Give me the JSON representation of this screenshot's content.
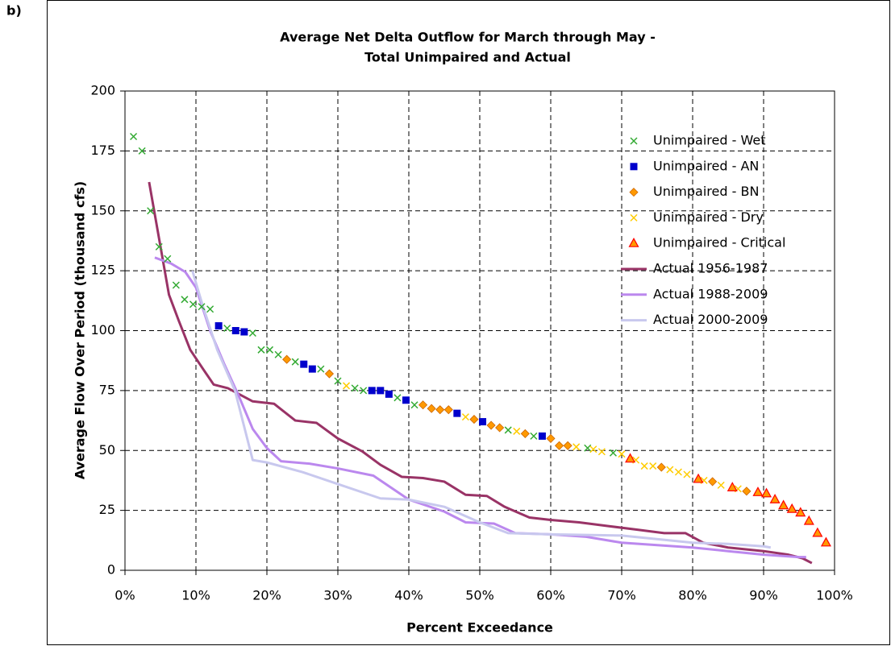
{
  "chart_data": {
    "type": "scatter",
    "panel_label": "b)",
    "title": [
      "Average Net Delta Outflow for March through May -",
      "Total Unimpaired and Actual"
    ],
    "xlabel": "Percent Exceedance",
    "ylabel": "Average Flow Over Period (thousand cfs)",
    "xlim": [
      0,
      100
    ],
    "xticks": [
      {
        "value": 0,
        "label": "0%"
      },
      {
        "value": 10,
        "label": "10%"
      },
      {
        "value": 20,
        "label": "20%"
      },
      {
        "value": 30,
        "label": "30%"
      },
      {
        "value": 40,
        "label": "40%"
      },
      {
        "value": 50,
        "label": "50%"
      },
      {
        "value": 60,
        "label": "60%"
      },
      {
        "value": 70,
        "label": "70%"
      },
      {
        "value": 80,
        "label": "80%"
      },
      {
        "value": 90,
        "label": "90%"
      },
      {
        "value": 100,
        "label": "100%"
      }
    ],
    "ylim": [
      0,
      200
    ],
    "yticks": [
      0,
      25,
      50,
      75,
      100,
      125,
      150,
      175,
      200
    ],
    "grid": true,
    "legend": "upper right",
    "series": [
      {
        "name": "Unimpaired - Wet",
        "color": "#33aa33",
        "marker": "x",
        "x": [
          1.2,
          2.4,
          3.6,
          4.8,
          6.0,
          7.2,
          8.4,
          9.6,
          10.8,
          12.0,
          14.4,
          18.0,
          19.2,
          20.4,
          21.6,
          24.0,
          27.6,
          30.0,
          32.4,
          33.6,
          38.4,
          40.8,
          54.0,
          57.6,
          65.2,
          68.8
        ],
        "values": [
          181,
          175,
          150,
          135,
          130,
          119,
          113,
          111,
          110,
          109,
          101,
          99,
          92,
          92,
          90,
          87,
          84,
          79,
          76,
          75,
          72,
          69,
          58.5,
          56,
          51,
          49
        ]
      },
      {
        "name": "Unimpaired - AN",
        "color": "#0000cc",
        "marker": "square",
        "x": [
          13.2,
          15.6,
          16.8,
          25.2,
          26.4,
          34.8,
          36.0,
          37.2,
          39.6,
          46.8,
          50.4,
          58.8
        ],
        "values": [
          102,
          100,
          99.5,
          86,
          84,
          75,
          75,
          73.5,
          71,
          65.5,
          62,
          56
        ]
      },
      {
        "name": "Unimpaired - BN",
        "color": "#ff9900",
        "marker": "diamond",
        "x": [
          22.8,
          28.8,
          42.0,
          43.2,
          44.4,
          45.6,
          49.2,
          51.6,
          52.8,
          56.4,
          60.0,
          61.2,
          62.4,
          75.6,
          82.8,
          87.6
        ],
        "values": [
          88,
          82,
          69,
          67.5,
          67,
          67,
          63,
          60.5,
          59.5,
          57,
          55,
          52,
          52,
          43,
          37,
          33
        ]
      },
      {
        "name": "Unimpaired - Dry",
        "color": "#ffcc00",
        "marker": "x",
        "x": [
          31.2,
          48.0,
          55.2,
          63.6,
          66.0,
          67.2,
          70.0,
          72.0,
          73.2,
          74.4,
          76.8,
          78.0,
          79.2,
          81.6,
          84.0,
          86.4
        ],
        "values": [
          77,
          64,
          58,
          51.5,
          50.5,
          49.5,
          48.5,
          46,
          43.5,
          43.5,
          42,
          41,
          40,
          37.5,
          35.5,
          34
        ]
      },
      {
        "name": "Unimpaired - Critical",
        "color": "#ff0000",
        "marker": "triangle",
        "x": [
          71.2,
          80.8,
          85.6,
          89.2,
          90.4,
          91.6,
          92.8,
          94.0,
          95.2,
          96.4,
          97.6,
          98.8
        ],
        "values": [
          46.5,
          38,
          34.5,
          32.5,
          32,
          29.5,
          27,
          25.5,
          24,
          20.5,
          15.5,
          11.5
        ]
      },
      {
        "name": "Actual 1956-1987",
        "color": "#993366",
        "marker": "line",
        "x": [
          3.4,
          6.2,
          7.6,
          9.2,
          11,
          12.5,
          14.5,
          18,
          21,
          24,
          27,
          30,
          33.5,
          36,
          39,
          42,
          45,
          48,
          51,
          53.5,
          57,
          60,
          64,
          68,
          72,
          76,
          79,
          81.5,
          85,
          90,
          93.5,
          95.5,
          96.8
        ],
        "values": [
          162,
          115,
          104,
          92,
          84,
          77.5,
          76,
          70.5,
          69.5,
          62.5,
          61.5,
          55,
          49.5,
          44,
          39,
          38.5,
          37,
          31.5,
          31,
          26.5,
          22,
          21,
          20,
          18.5,
          17,
          15.5,
          15.5,
          11.5,
          9.5,
          8,
          6.5,
          5,
          3
        ]
      },
      {
        "name": "Actual 1988-2009",
        "color": "#bb88ee",
        "marker": "line",
        "x": [
          4.2,
          6.5,
          8.5,
          10,
          12,
          14,
          16,
          18,
          20,
          22,
          26,
          30,
          35,
          40,
          45,
          48,
          52,
          55,
          60,
          65,
          70,
          75,
          80,
          85,
          90,
          95,
          96
        ],
        "values": [
          130.5,
          128,
          124.5,
          118,
          100,
          86,
          73,
          59,
          51,
          45.5,
          44.5,
          42.5,
          39.5,
          29.5,
          24.5,
          20,
          19.5,
          15.5,
          15,
          14,
          11.5,
          10.5,
          9.5,
          8,
          6.5,
          5.5,
          5.5
        ]
      },
      {
        "name": "Actual 2000-2009",
        "color": "#c8c8ee",
        "marker": "line",
        "x": [
          9.5,
          11,
          13,
          15.5,
          18,
          20,
          25,
          30,
          36,
          40,
          45,
          50,
          54,
          60,
          70,
          80,
          85,
          90,
          91
        ],
        "values": [
          125,
          110,
          92,
          75,
          46,
          45,
          41,
          36,
          30,
          29.5,
          26.5,
          20,
          15.5,
          15,
          14.5,
          11.5,
          11,
          10,
          9.5
        ]
      }
    ]
  }
}
